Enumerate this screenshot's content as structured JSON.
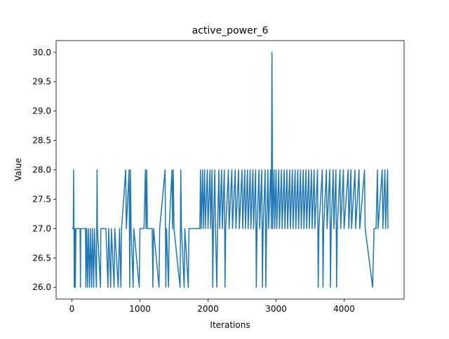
{
  "chart_data": {
    "type": "line",
    "title": "active_power_6",
    "x_label": "Iterations",
    "y_label": "Value",
    "x": [
      0,
      20,
      25,
      30,
      35,
      45,
      50,
      60,
      120,
      125,
      130,
      200,
      205,
      215,
      230,
      240,
      260,
      270,
      290,
      300,
      320,
      330,
      360,
      365,
      370,
      375,
      420,
      425,
      500,
      530,
      540,
      570,
      580,
      620,
      630,
      680,
      700,
      720,
      730,
      790,
      800,
      840,
      850,
      860,
      870,
      900,
      910,
      990,
      1000,
      1060,
      1080,
      1090,
      1100,
      1110,
      1180,
      1190,
      1200,
      1280,
      1290,
      1370,
      1380,
      1390,
      1420,
      1430,
      1470,
      1480,
      1490,
      1500,
      1590,
      1600,
      1610,
      1650,
      1660,
      1710,
      1720,
      1880,
      1890,
      1900,
      1920,
      1930,
      1950,
      1960,
      1990,
      2000,
      2030,
      2040,
      2060,
      2070,
      2080,
      2100,
      2110,
      2130,
      2140,
      2160,
      2170,
      2200,
      2210,
      2240,
      2250,
      2260,
      2300,
      2310,
      2350,
      2360,
      2400,
      2410,
      2450,
      2460,
      2500,
      2510,
      2540,
      2550,
      2580,
      2590,
      2620,
      2630,
      2660,
      2670,
      2700,
      2710,
      2720,
      2750,
      2760,
      2790,
      2800,
      2810,
      2840,
      2850,
      2860,
      2880,
      2890,
      2920,
      2930,
      2940,
      2950,
      2970,
      2980,
      3000,
      3010,
      3040,
      3050,
      3080,
      3090,
      3120,
      3130,
      3160,
      3170,
      3200,
      3210,
      3240,
      3250,
      3280,
      3290,
      3320,
      3330,
      3360,
      3370,
      3400,
      3410,
      3440,
      3450,
      3480,
      3490,
      3520,
      3530,
      3560,
      3570,
      3610,
      3620,
      3630,
      3680,
      3690,
      3700,
      3740,
      3750,
      3790,
      3800,
      3810,
      3840,
      3850,
      3880,
      3890,
      3900,
      3940,
      3950,
      3990,
      4000,
      4060,
      4070,
      4100,
      4110,
      4160,
      4170,
      4220,
      4230,
      4300,
      4310,
      4420,
      4440,
      4470,
      4490,
      4500,
      4560,
      4570,
      4600,
      4610,
      4640,
      4645
    ],
    "series": [
      {
        "name": "active_power_6",
        "color": "#1f77b4",
        "values": [
          27,
          27,
          28,
          27,
          26,
          27,
          26,
          27,
          27,
          26,
          27,
          27,
          26,
          27,
          26,
          27,
          26,
          27,
          26,
          27,
          26,
          27,
          26,
          27,
          28,
          27,
          26,
          27,
          27,
          26,
          27,
          26,
          27,
          26,
          27,
          26,
          27,
          26,
          27,
          28,
          27,
          28,
          26,
          28,
          27,
          26,
          27,
          26,
          27,
          27,
          28,
          27,
          28,
          27,
          27,
          26,
          27,
          26,
          27,
          28,
          26,
          27,
          26,
          27,
          28,
          27,
          28,
          27,
          26,
          28,
          27,
          26,
          27,
          26,
          27,
          27,
          28,
          27,
          28,
          27,
          28,
          27,
          28,
          27,
          28,
          27,
          28,
          26,
          27,
          28,
          27,
          26,
          27,
          28,
          27,
          28,
          27,
          28,
          26,
          27,
          28,
          27,
          28,
          27,
          28,
          27,
          28,
          27,
          28,
          27,
          28,
          27,
          28,
          27,
          28,
          27,
          28,
          27,
          28,
          26,
          27,
          28,
          27,
          28,
          26,
          27,
          28,
          26,
          27,
          28,
          27,
          28,
          27,
          30,
          27,
          28,
          27,
          28,
          27,
          28,
          27,
          28,
          27,
          28,
          27,
          28,
          27,
          28,
          27,
          28,
          27,
          28,
          27,
          28,
          27,
          28,
          27,
          28,
          27,
          28,
          27,
          28,
          27,
          28,
          27,
          28,
          27,
          28,
          26,
          27,
          28,
          26,
          27,
          28,
          27,
          28,
          26,
          27,
          28,
          27,
          28,
          26,
          27,
          28,
          27,
          28,
          27,
          28,
          27,
          28,
          27,
          28,
          27,
          28,
          27,
          28,
          27,
          26,
          27,
          27,
          28,
          27,
          28,
          27,
          28,
          27,
          28,
          27
        ]
      }
    ],
    "xlim": [
      -232,
      4882
    ],
    "ylim": [
      25.8,
      30.2
    ],
    "xticks": [
      0,
      1000,
      2000,
      3000,
      4000
    ],
    "yticks": [
      {
        "value": 26,
        "label": "26.0"
      },
      26.5,
      {
        "value": 27,
        "label": "27.0"
      },
      27.5,
      {
        "value": 28,
        "label": "28.0"
      },
      28.5,
      {
        "value": 29,
        "label": "29.0"
      },
      29.5,
      {
        "value": 30,
        "label": "30.0"
      }
    ]
  }
}
